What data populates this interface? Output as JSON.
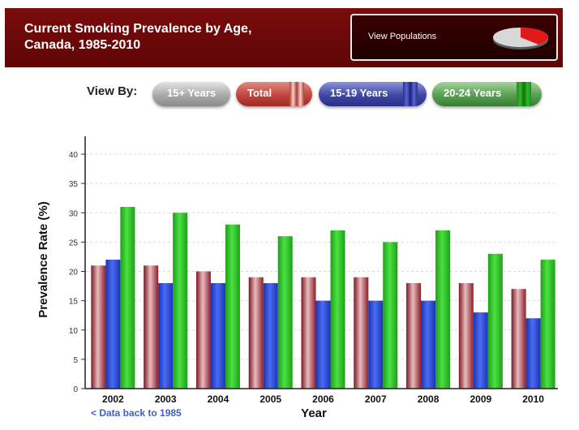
{
  "header": {
    "title_line1": "Current Smoking Prevalence by Age,",
    "title_line2": "Canada, 1985-2010",
    "view_populations_label": "View Populations"
  },
  "viewby": {
    "label": "View By:",
    "buttons": [
      "15+ Years",
      "Total",
      "15-19 Years",
      "20-24 Years"
    ]
  },
  "footer": {
    "back_link": "< Data back to 1985"
  },
  "colors": {
    "total": "#b0303a",
    "age_15_19": "#1f3fd6",
    "age_20_24": "#22c21c"
  },
  "chart_data": {
    "type": "bar",
    "categories": [
      "2002",
      "2003",
      "2004",
      "2005",
      "2006",
      "2007",
      "2008",
      "2009",
      "2010"
    ],
    "series": [
      {
        "values": [
          21,
          21,
          20,
          19,
          19,
          19,
          18,
          18,
          17
        ]
      },
      {
        "values": [
          22,
          18,
          18,
          18,
          15,
          15,
          15,
          13,
          12
        ]
      },
      {
        "values": [
          31,
          30,
          28,
          26,
          27,
          25,
          27,
          23,
          22
        ]
      }
    ],
    "xlabel": "Year",
    "ylabel": "Prevalence Rate (%)",
    "ylim": [
      0,
      40
    ],
    "yticks": [
      0,
      5,
      10,
      15,
      20,
      25,
      30,
      35,
      40
    ],
    "grid": true
  }
}
